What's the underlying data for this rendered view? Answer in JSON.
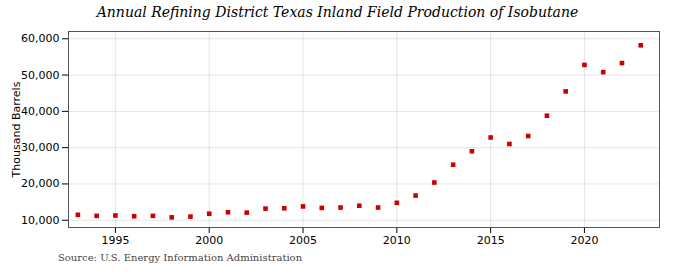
{
  "chart_data": {
    "type": "scatter",
    "title": "Annual Refining District Texas Inland Field Production of Isobutane",
    "ylabel": "Thousand Barrels",
    "annotation": "Source: U.S. Energy Information Administration",
    "x": [
      1993,
      1994,
      1995,
      1996,
      1997,
      1998,
      1999,
      2000,
      2001,
      2002,
      2003,
      2004,
      2005,
      2006,
      2007,
      2008,
      2009,
      2010,
      2011,
      2012,
      2013,
      2014,
      2015,
      2016,
      2017,
      2018,
      2019,
      2020,
      2021,
      2022,
      2023
    ],
    "values": [
      11500,
      11200,
      11300,
      11100,
      11200,
      10800,
      11000,
      11800,
      12200,
      12100,
      13200,
      13300,
      13800,
      13400,
      13500,
      14000,
      13500,
      14800,
      16800,
      20400,
      25300,
      29000,
      32800,
      31000,
      33200,
      38800,
      45500,
      52800,
      50800,
      53300,
      58200
    ],
    "color": "#cc0000",
    "marker": "square",
    "xlim": [
      1992.5,
      2024
    ],
    "ylim": [
      8000,
      62000
    ],
    "xticks": [
      1995,
      2000,
      2005,
      2010,
      2015,
      2020
    ],
    "yticks": [
      {
        "value": 10000,
        "label": "10,000"
      },
      {
        "value": 20000,
        "label": "20,000"
      },
      {
        "value": 30000,
        "label": "30,000"
      },
      {
        "value": 40000,
        "label": "40,000"
      },
      {
        "value": 50000,
        "label": "50,000"
      },
      {
        "value": 60000,
        "label": "60,000"
      }
    ],
    "grid": true
  }
}
